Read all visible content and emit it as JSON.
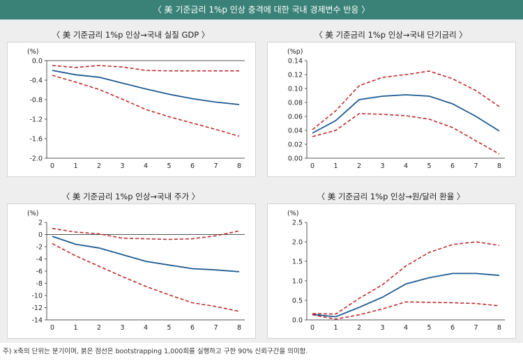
{
  "header": {
    "title": "〈 美 기준금리 1%p 인상 충격에 대한 국내 경제변수 반응 〉"
  },
  "footnote": "주) x축의 단위는 분기이며, 붉은 점선은 bootstrapping 1,000회를 실행하고 구한 90% 신뢰구간을 의미함.",
  "colors": {
    "estimate": "#1f5a93",
    "band": "#c0282b",
    "header_bg": "#3a8278",
    "panel_bg": "#eeeeee"
  },
  "chart_data": [
    {
      "type": "line",
      "title": "〈 美 기준금리 1%p 인상→국내 실질 GDP 〉",
      "unit": "(%)",
      "x": [
        0,
        1,
        2,
        3,
        4,
        5,
        6,
        7,
        8
      ],
      "ylim": [
        -2.0,
        0.0
      ],
      "yticks": [
        0.0,
        -0.4,
        -0.8,
        -1.2,
        -1.6,
        -2.0
      ],
      "ytick_labels": [
        "0.0",
        "-0.4",
        "-0.8",
        "-1.2",
        "-1.6",
        "-2.0"
      ],
      "zero_line": true,
      "grid": false,
      "series": [
        {
          "role": "estimate",
          "values": [
            -0.2,
            -0.29,
            -0.34,
            -0.46,
            -0.58,
            -0.69,
            -0.78,
            -0.85,
            -0.9
          ]
        },
        {
          "role": "upper",
          "values": [
            -0.1,
            -0.14,
            -0.1,
            -0.13,
            -0.2,
            -0.21,
            -0.21,
            -0.21,
            -0.21
          ]
        },
        {
          "role": "lower",
          "values": [
            -0.3,
            -0.44,
            -0.59,
            -0.79,
            -1.0,
            -1.15,
            -1.28,
            -1.41,
            -1.55
          ]
        }
      ]
    },
    {
      "type": "line",
      "title": "〈 美 기준금리 1%p 인상→국내 단기금리 〉",
      "unit": "(%p)",
      "x": [
        0,
        1,
        2,
        3,
        4,
        5,
        6,
        7,
        8
      ],
      "ylim": [
        0.0,
        0.14
      ],
      "yticks": [
        0.14,
        0.12,
        0.1,
        0.08,
        0.06,
        0.04,
        0.02,
        0.0
      ],
      "ytick_labels": [
        "0.14",
        "0.12",
        "0.10",
        "0.08",
        "0.06",
        "0.04",
        "0.02",
        "0.00"
      ],
      "zero_line": false,
      "grid": false,
      "series": [
        {
          "role": "estimate",
          "values": [
            0.036,
            0.054,
            0.084,
            0.089,
            0.091,
            0.089,
            0.078,
            0.06,
            0.039
          ]
        },
        {
          "role": "upper",
          "values": [
            0.041,
            0.068,
            0.104,
            0.116,
            0.12,
            0.125,
            0.114,
            0.097,
            0.074
          ]
        },
        {
          "role": "lower",
          "values": [
            0.031,
            0.04,
            0.064,
            0.063,
            0.061,
            0.056,
            0.044,
            0.025,
            0.006
          ]
        }
      ]
    },
    {
      "type": "line",
      "title": "〈 美 기준금리 1%p 인상→국내 주가 〉",
      "unit": "(%)",
      "x": [
        0,
        1,
        2,
        3,
        4,
        5,
        6,
        7,
        8
      ],
      "ylim": [
        -14,
        2
      ],
      "yticks": [
        2,
        0,
        -2,
        -4,
        -6,
        -8,
        -10,
        -12,
        -14
      ],
      "ytick_labels": [
        "2",
        "0",
        "-2",
        "-4",
        "-6",
        "-8",
        "-10",
        "-12",
        "-14"
      ],
      "zero_line": true,
      "grid": false,
      "series": [
        {
          "role": "estimate",
          "values": [
            -0.3,
            -1.6,
            -2.2,
            -3.3,
            -4.4,
            -5.0,
            -5.6,
            -5.8,
            -6.1
          ]
        },
        {
          "role": "upper",
          "values": [
            1.0,
            0.4,
            0.1,
            -0.6,
            -0.7,
            -0.8,
            -0.7,
            -0.2,
            0.6
          ]
        },
        {
          "role": "lower",
          "values": [
            -1.5,
            -3.5,
            -5.2,
            -6.9,
            -8.5,
            -9.9,
            -11.2,
            -11.8,
            -12.6
          ]
        }
      ]
    },
    {
      "type": "line",
      "title": "〈 美 기준금리 1%p 인상→원/달러 환율 〉",
      "unit": "(%)",
      "x": [
        0,
        1,
        2,
        3,
        4,
        5,
        6,
        7,
        8
      ],
      "ylim": [
        0.0,
        2.5
      ],
      "yticks": [
        2.5,
        2.0,
        1.5,
        1.0,
        0.5,
        0.0
      ],
      "ytick_labels": [
        "2.5",
        "2.0",
        "1.5",
        "1.0",
        "0.5",
        "0.0"
      ],
      "zero_line": true,
      "grid": false,
      "series": [
        {
          "role": "estimate",
          "values": [
            0.14,
            0.08,
            0.32,
            0.58,
            0.92,
            1.08,
            1.19,
            1.19,
            1.14
          ]
        },
        {
          "role": "upper",
          "values": [
            0.16,
            0.15,
            0.55,
            0.9,
            1.38,
            1.73,
            1.93,
            2.0,
            1.91
          ]
        },
        {
          "role": "lower",
          "values": [
            0.13,
            0.02,
            0.13,
            0.28,
            0.46,
            0.45,
            0.44,
            0.42,
            0.36
          ]
        }
      ]
    }
  ]
}
